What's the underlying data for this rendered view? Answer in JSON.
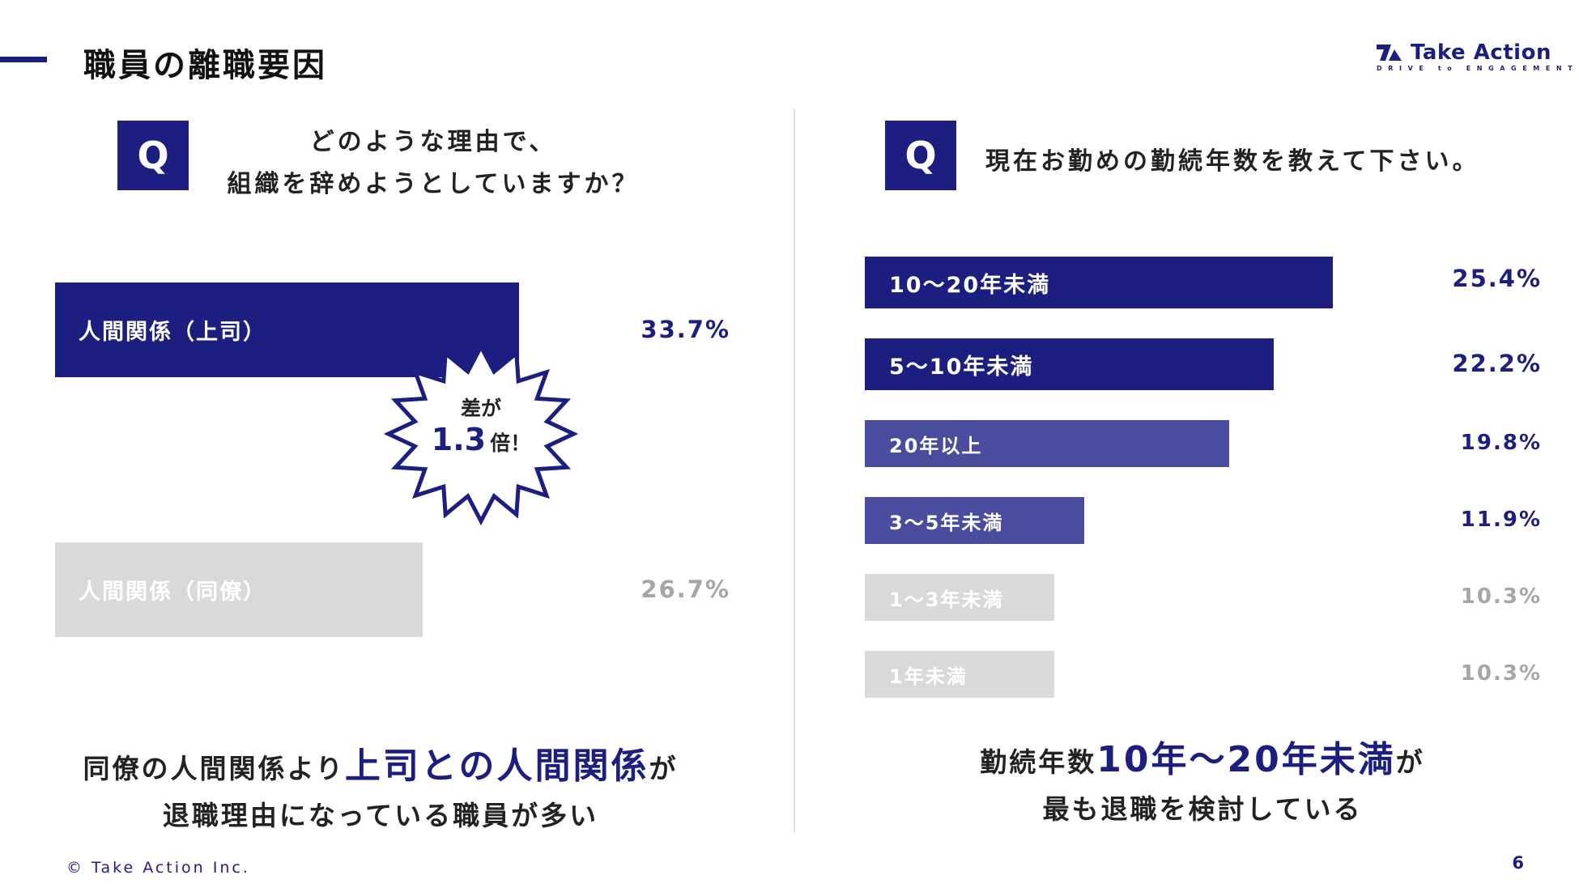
{
  "header": {
    "title": "職員の離職要因"
  },
  "logo": {
    "name": "Take Action",
    "tagline": "DRIVE to ENGAGEMENT",
    "icon": "take-action-logo-icon"
  },
  "colors": {
    "primary": "#1c1f80",
    "secondary": "#4a4d9e",
    "muted": "#d9d9d9",
    "muted_text": "#a6a6a6",
    "burst_border": "#1c1f80"
  },
  "left": {
    "q_label": "Q",
    "question_line1": "どのような理由で、",
    "question_line2": "組織を辞めようとしていますか？",
    "burst": {
      "line1": "差が",
      "number": "1.3",
      "suffix": "倍！"
    },
    "summary": {
      "line1_pre": "同僚の人間関係より",
      "line1_hl": "上司との人間関係",
      "line1_post": "が",
      "line2": "退職理由になっている職員が多い"
    }
  },
  "right": {
    "q_label": "Q",
    "question": "現在お勤めの勤続年数を教えて下さい。",
    "summary": {
      "line1_pre": "勤続年数",
      "line1_hl": "10年〜20年未満",
      "line1_post": "が",
      "line2": "最も退職を検討している"
    }
  },
  "chart_data": [
    {
      "type": "bar",
      "orientation": "horizontal",
      "categories": [
        "人間関係（上司）",
        "人間関係（同僚）"
      ],
      "values": [
        33.7,
        26.7
      ],
      "value_labels": [
        "33.7%",
        "26.7%"
      ],
      "bar_colors": [
        "#1c1f80",
        "#d9d9d9"
      ]
    },
    {
      "type": "bar",
      "orientation": "horizontal",
      "categories": [
        "10〜20年未満",
        "5〜10年未満",
        "20年以上",
        "3〜5年未満",
        "1〜3年未満",
        "1年未満"
      ],
      "values": [
        25.4,
        22.2,
        19.8,
        11.9,
        10.3,
        10.3
      ],
      "value_labels": [
        "25.4%",
        "22.2%",
        "19.8%",
        "11.9%",
        "10.3%",
        "10.3%"
      ],
      "bar_colors": [
        "#1c1f80",
        "#1c1f80",
        "#4a4d9e",
        "#4a4d9e",
        "#d9d9d9",
        "#d9d9d9"
      ]
    }
  ],
  "footer": {
    "copyright": "© Take Action Inc.",
    "page": "6"
  }
}
